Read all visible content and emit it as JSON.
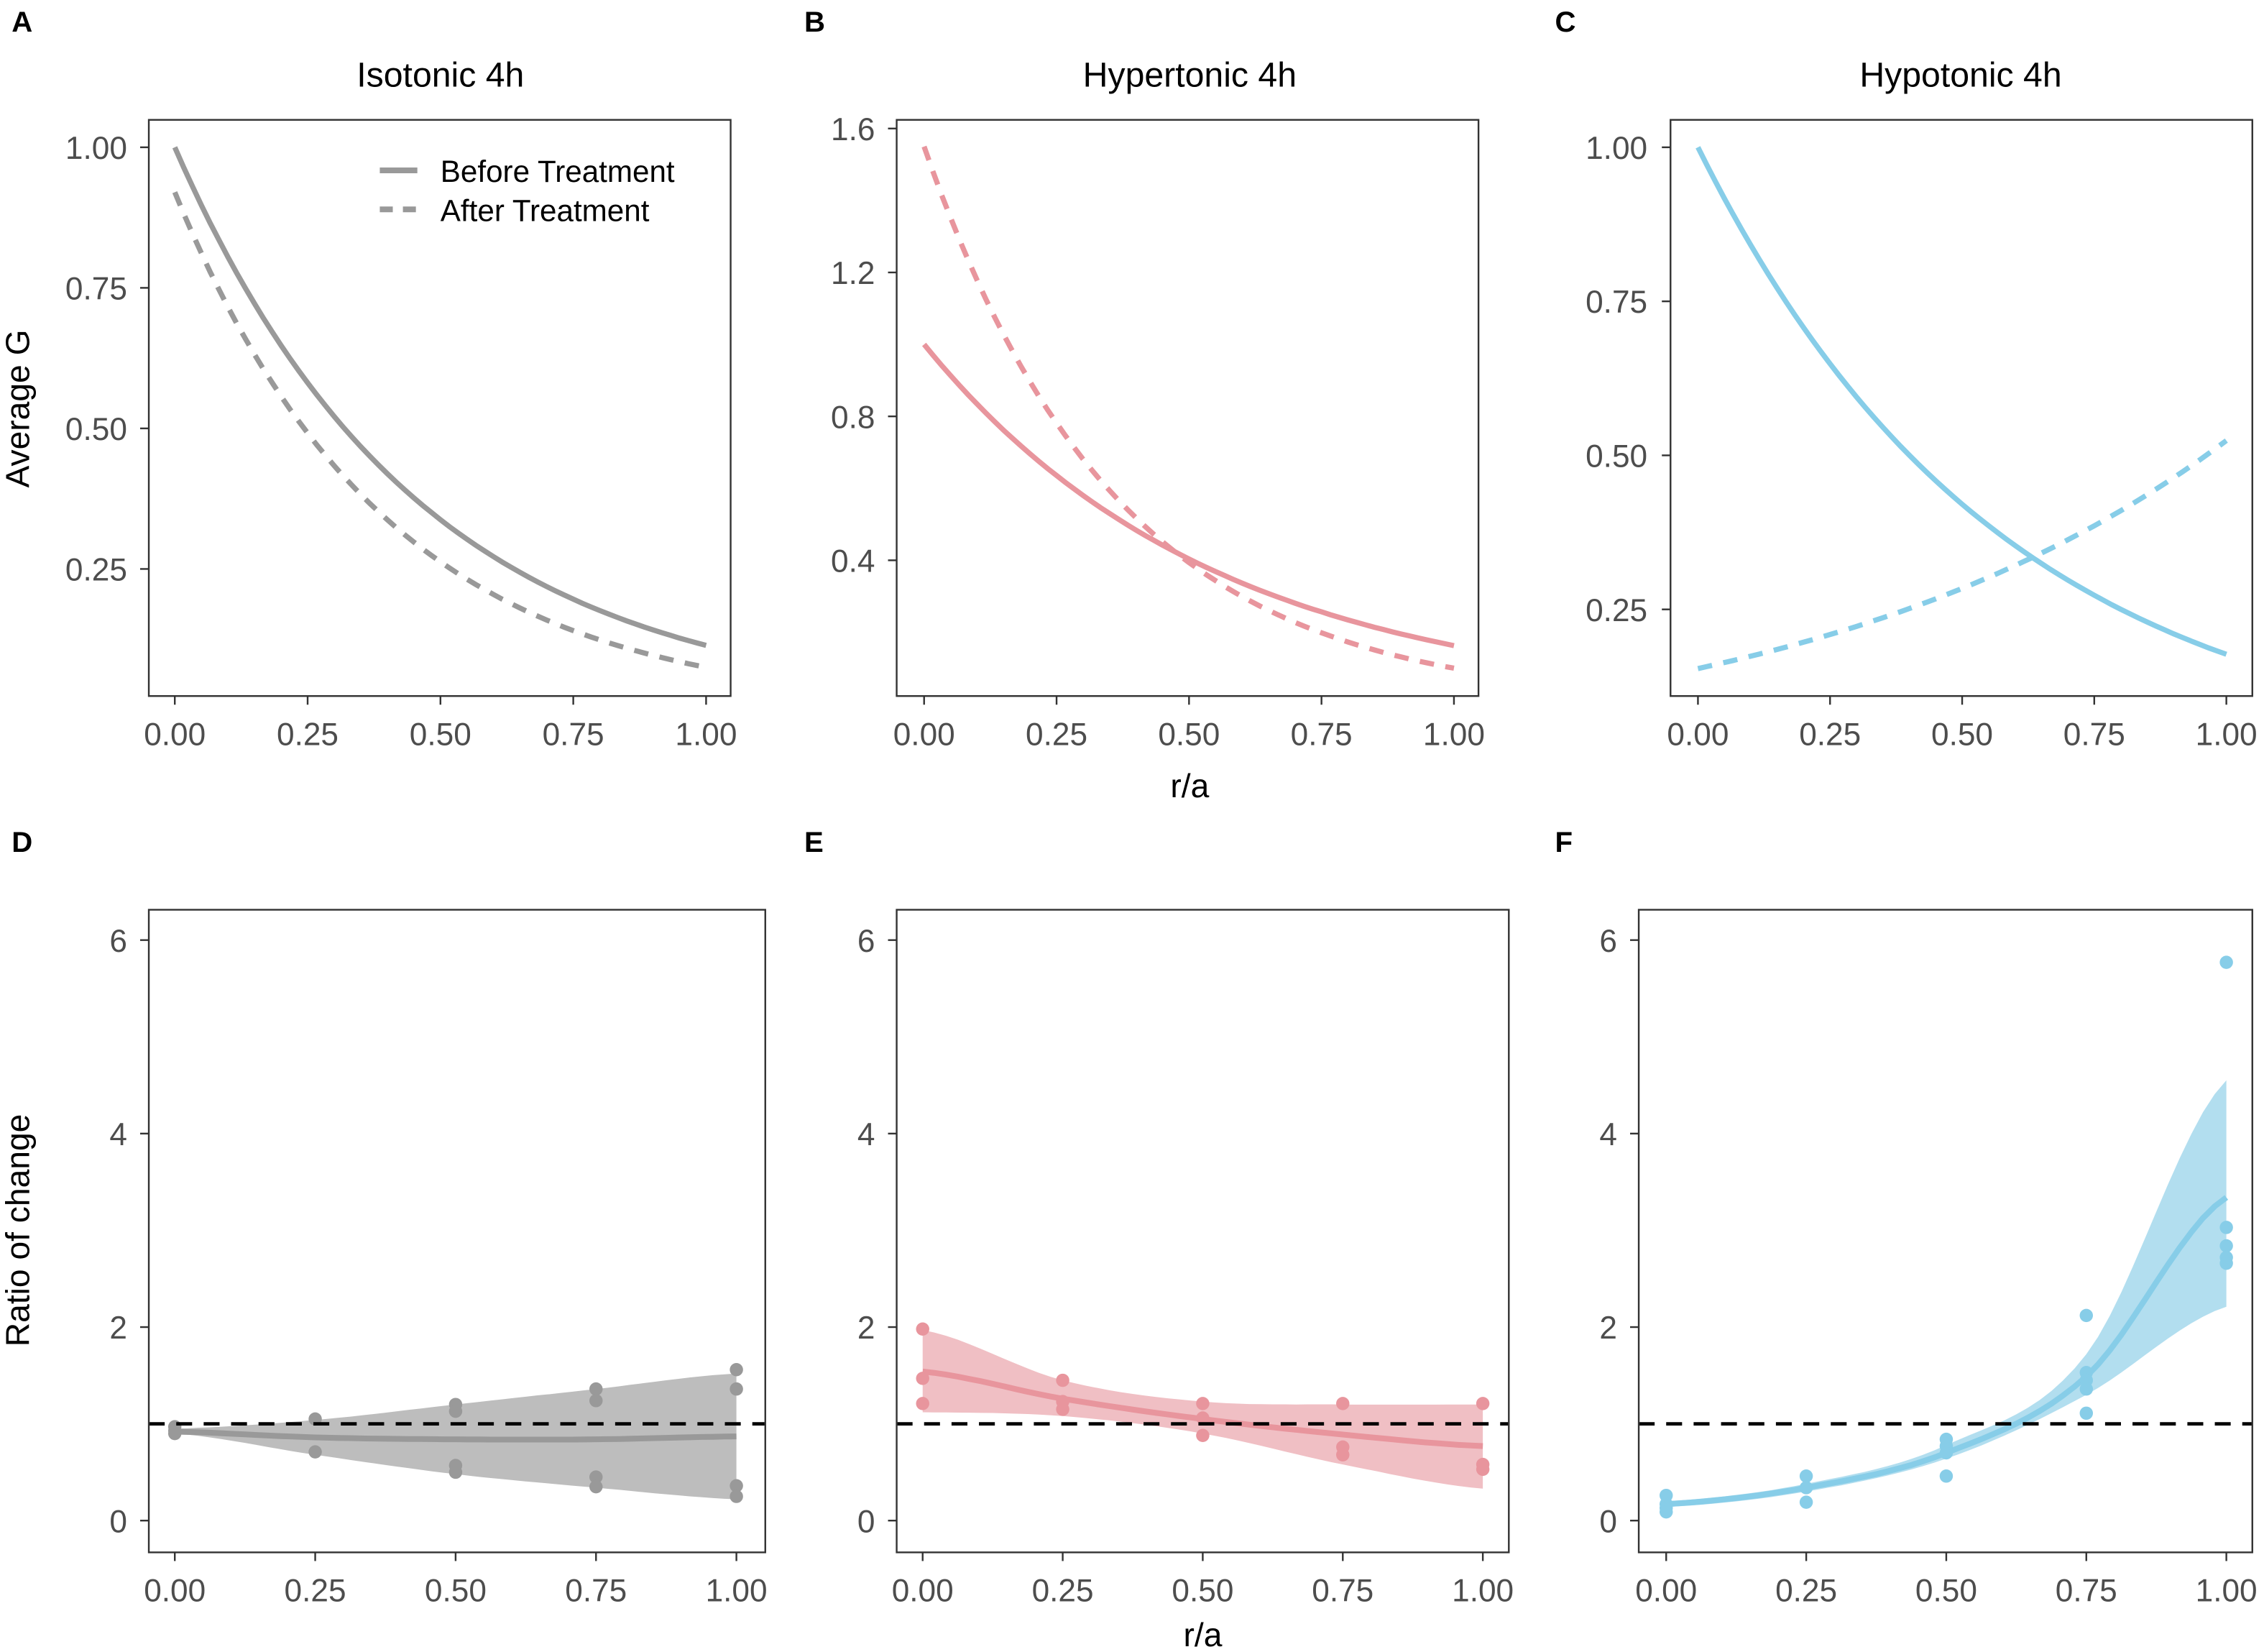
{
  "colors": {
    "isotonic": "#999999",
    "isotonic_band": "#bdbdbd",
    "hypertonic": "#e8959d",
    "hypertonic_band": "#f0bfc4",
    "hypotonic": "#87cde8",
    "hypotonic_band": "#b2deef",
    "reference": "#000000"
  },
  "chart_data": [
    {
      "panel": "A",
      "type": "line",
      "title": "Isotonic 4h",
      "xlabel": "",
      "ylabel": "Average G",
      "color_key": "isotonic",
      "xlim": [
        0,
        1
      ],
      "x_ticks": [
        0,
        0.25,
        0.5,
        0.75,
        1
      ],
      "x_tick_labels": [
        "0.00",
        "0.25",
        "0.50",
        "0.75",
        "1.00"
      ],
      "y_ticks": [
        0.25,
        0.5,
        0.75,
        1.0
      ],
      "y_tick_labels": [
        "0.25",
        "0.50",
        "0.75",
        "1.00"
      ],
      "legend": {
        "position": "top-right",
        "entries": [
          {
            "label": "Before Treatment",
            "style": "solid"
          },
          {
            "label": "After Treatment",
            "style": "dashed"
          }
        ]
      },
      "series": [
        {
          "name": "Before Treatment",
          "model": "exponential",
          "start": 1.0,
          "end": 0.114,
          "style": "solid"
        },
        {
          "name": "After Treatment",
          "model": "exponential",
          "start": 0.92,
          "end": 0.075,
          "style": "dashed"
        }
      ]
    },
    {
      "panel": "B",
      "type": "line",
      "title": "Hypertonic 4h",
      "xlabel": "r/a",
      "ylabel": "",
      "color_key": "hypertonic",
      "xlim": [
        0,
        1
      ],
      "x_ticks": [
        0,
        0.25,
        0.5,
        0.75,
        1
      ],
      "x_tick_labels": [
        "0.00",
        "0.25",
        "0.50",
        "0.75",
        "1.00"
      ],
      "y_ticks": [
        0.4,
        0.8,
        1.2,
        1.6
      ],
      "y_tick_labels": [
        "0.4",
        "0.8",
        "1.2",
        "1.6"
      ],
      "series": [
        {
          "name": "Before Treatment",
          "model": "exponential",
          "start": 1.0,
          "end": 0.163,
          "style": "solid"
        },
        {
          "name": "After Treatment",
          "model": "exponential",
          "start": 1.55,
          "end": 0.1,
          "style": "dashed"
        }
      ]
    },
    {
      "panel": "C",
      "type": "line",
      "title": "Hypotonic 4h",
      "xlabel": "",
      "ylabel": "",
      "color_key": "hypotonic",
      "xlim": [
        0,
        1
      ],
      "x_ticks": [
        0,
        0.25,
        0.5,
        0.75,
        1
      ],
      "x_tick_labels": [
        "0.00",
        "0.25",
        "0.50",
        "0.75",
        "1.00"
      ],
      "y_ticks": [
        0.25,
        0.5,
        0.75,
        1.0
      ],
      "y_tick_labels": [
        "0.25",
        "0.50",
        "0.75",
        "1.00"
      ],
      "series": [
        {
          "name": "Before Treatment",
          "model": "exponential",
          "start": 1.0,
          "end": 0.177,
          "style": "solid"
        },
        {
          "name": "After Treatment",
          "model": "exponential",
          "start": 0.154,
          "end": 0.524,
          "style": "dashed"
        }
      ]
    },
    {
      "panel": "D",
      "type": "scatter",
      "title": "",
      "xlabel": "",
      "ylabel": "Ratio of change",
      "color_key": "isotonic",
      "reference_line": 1,
      "xlim": [
        0,
        1
      ],
      "ylim": [
        0,
        6
      ],
      "x_ticks": [
        0,
        0.25,
        0.5,
        0.75,
        1
      ],
      "x_tick_labels": [
        "0.00",
        "0.25",
        "0.50",
        "0.75",
        "1.00"
      ],
      "y_ticks": [
        0,
        2,
        4,
        6
      ],
      "y_tick_labels": [
        "0",
        "2",
        "4",
        "6"
      ],
      "points": {
        "x": [
          0,
          0,
          0,
          0.25,
          0.25,
          0.5,
          0.5,
          0.5,
          0.5,
          0.75,
          0.75,
          0.75,
          0.75,
          1,
          1,
          1,
          1
        ],
        "y": [
          0.97,
          0.93,
          0.9,
          1.05,
          0.71,
          1.2,
          1.13,
          0.57,
          0.5,
          1.36,
          1.24,
          0.45,
          0.35,
          1.56,
          1.36,
          0.36,
          0.25
        ]
      },
      "fit": {
        "x": [
          0,
          0.25,
          0.5,
          0.75,
          1
        ],
        "y": [
          0.92,
          0.86,
          0.84,
          0.84,
          0.87
        ],
        "lower": [
          0.9,
          0.68,
          0.48,
          0.34,
          0.22
        ],
        "upper": [
          0.95,
          1.04,
          1.2,
          1.36,
          1.52
        ]
      }
    },
    {
      "panel": "E",
      "type": "scatter",
      "title": "",
      "xlabel": "r/a",
      "ylabel": "",
      "color_key": "hypertonic",
      "reference_line": 1,
      "xlim": [
        0,
        1
      ],
      "ylim": [
        0,
        6
      ],
      "x_ticks": [
        0,
        0.25,
        0.5,
        0.75,
        1
      ],
      "x_tick_labels": [
        "0.00",
        "0.25",
        "0.50",
        "0.75",
        "1.00"
      ],
      "y_ticks": [
        0,
        2,
        4,
        6
      ],
      "y_tick_labels": [
        "0",
        "2",
        "4",
        "6"
      ],
      "points": {
        "x": [
          0,
          0,
          0,
          0.25,
          0.25,
          0.25,
          0.5,
          0.5,
          0.5,
          0.75,
          0.75,
          0.75,
          1,
          1,
          1
        ],
        "y": [
          1.98,
          1.47,
          1.21,
          1.45,
          1.23,
          1.15,
          1.21,
          1.06,
          0.88,
          1.21,
          0.76,
          0.68,
          1.21,
          0.58,
          0.53
        ]
      },
      "fit": {
        "x": [
          0,
          0.25,
          0.5,
          0.75,
          1
        ],
        "y": [
          1.54,
          1.26,
          1.05,
          0.89,
          0.77
        ],
        "lower": [
          1.12,
          1.08,
          0.9,
          0.58,
          0.33
        ],
        "upper": [
          1.97,
          1.45,
          1.23,
          1.2,
          1.2
        ]
      }
    },
    {
      "panel": "F",
      "type": "scatter",
      "title": "",
      "xlabel": "",
      "ylabel": "",
      "color_key": "hypotonic",
      "reference_line": 1,
      "xlim": [
        0,
        1
      ],
      "ylim": [
        0,
        6
      ],
      "x_ticks": [
        0,
        0.25,
        0.5,
        0.75,
        1
      ],
      "x_tick_labels": [
        "0.00",
        "0.25",
        "0.50",
        "0.75",
        "1.00"
      ],
      "y_ticks": [
        0,
        2,
        4,
        6
      ],
      "y_tick_labels": [
        "0",
        "2",
        "4",
        "6"
      ],
      "points": {
        "x": [
          0,
          0,
          0,
          0,
          0.25,
          0.25,
          0.25,
          0.5,
          0.5,
          0.5,
          0.5,
          0.75,
          0.75,
          0.75,
          0.75,
          0.75,
          1,
          1,
          1,
          1,
          1
        ],
        "y": [
          0.26,
          0.17,
          0.13,
          0.09,
          0.46,
          0.34,
          0.19,
          0.84,
          0.77,
          0.7,
          0.46,
          2.12,
          1.53,
          1.45,
          1.36,
          1.11,
          5.77,
          3.03,
          2.84,
          2.72,
          2.66
        ]
      },
      "fit": {
        "x": [
          0,
          0.25,
          0.5,
          0.75,
          1
        ],
        "y": [
          0.17,
          0.34,
          0.7,
          1.49,
          3.34
        ],
        "lower": [
          0.14,
          0.3,
          0.64,
          1.3,
          2.21
        ],
        "upper": [
          0.2,
          0.38,
          0.78,
          1.72,
          4.55
        ]
      }
    }
  ]
}
